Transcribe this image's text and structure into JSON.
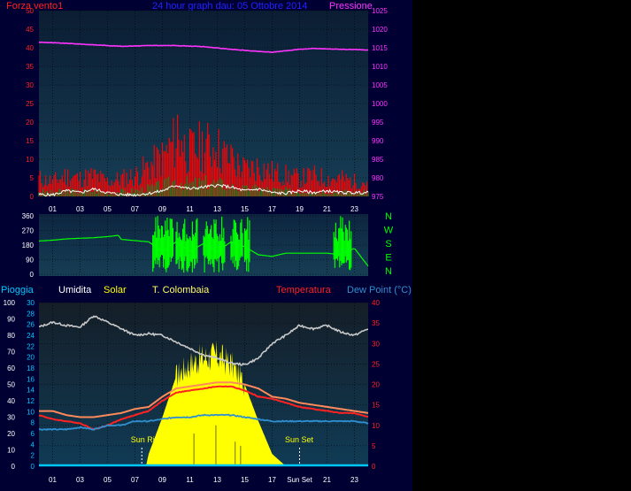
{
  "header": {
    "left_label": "Forza vento1",
    "title": "24 hour graph dau: 05 Ottobre 2014",
    "right_label": "Pressione"
  },
  "colors": {
    "background": "#000033",
    "panel_top": "#0b1d33",
    "panel_bottom": "#143a52",
    "wind": "#ff0000",
    "wind_avg": "#1f7f1f",
    "wind_white": "#ffffff",
    "pressure": "#ff33ff",
    "direction": "#00ff00",
    "humidity": "#c8c8c8",
    "solar": "#ffff00",
    "temp_colombaia": "#ff8a5a",
    "temperature": "#ff2222",
    "dewpoint": "#2f8fd0",
    "rain": "#00c8ff",
    "axis_text": "#ffffff",
    "title": "#2222ff"
  },
  "chart_data": [
    {
      "type": "line",
      "name": "wind-pressure",
      "x_ticks": [
        "01",
        "03",
        "05",
        "07",
        "09",
        "11",
        "13",
        "15",
        "17",
        "19",
        "21",
        "23"
      ],
      "y_left_ticks": [
        0,
        5,
        10,
        15,
        20,
        25,
        30,
        35,
        40,
        45,
        50
      ],
      "ylim_left": [
        0,
        50
      ],
      "y_right_ticks": [
        975,
        980,
        985,
        990,
        995,
        1000,
        1005,
        1010,
        1015,
        1020,
        1025
      ],
      "ylim_right": [
        975,
        1025
      ],
      "series": [
        {
          "key": "pressure",
          "axis": "right",
          "x": [
            0,
            2,
            4,
            6,
            8,
            10,
            12,
            14,
            16,
            17,
            18,
            19,
            20,
            22,
            24
          ],
          "values": [
            1016.5,
            1016.2,
            1015.8,
            1015.4,
            1015.6,
            1015.6,
            1015.3,
            1014.6,
            1014.0,
            1013.8,
            1014.2,
            1014.6,
            1014.8,
            1014.6,
            1014.4
          ]
        },
        {
          "key": "wind_white",
          "axis": "left",
          "x": [
            0,
            1,
            2,
            3,
            4,
            5,
            6,
            7,
            8,
            9,
            10,
            11,
            12,
            13,
            14,
            15,
            16,
            17,
            18,
            19,
            20,
            21,
            22,
            23,
            24
          ],
          "values": [
            0.5,
            0.4,
            1.5,
            1,
            2,
            1,
            0.5,
            0.4,
            0.8,
            1.5,
            3,
            2,
            2.5,
            3,
            2.5,
            1.5,
            2,
            1,
            0.8,
            1.5,
            1,
            1.5,
            1,
            1,
            1
          ]
        },
        {
          "key": "wind_gust",
          "axis": "left",
          "x": [
            0,
            1,
            2,
            3,
            4,
            5,
            6,
            7,
            8,
            9,
            10,
            11,
            12,
            13,
            14,
            15,
            16,
            17,
            18,
            19,
            20,
            21,
            22,
            23,
            24
          ],
          "values": [
            6,
            5,
            7,
            6,
            7,
            5,
            6,
            7,
            10,
            13,
            19,
            15,
            17,
            16,
            12,
            9,
            10,
            8,
            7,
            6,
            7,
            6,
            6,
            5,
            5
          ]
        }
      ]
    },
    {
      "type": "line",
      "name": "wind-direction",
      "y_ticks": [
        0,
        90,
        180,
        270,
        360
      ],
      "ylim": [
        0,
        360
      ],
      "compass_labels": [
        "N",
        "W",
        "S",
        "E",
        "N"
      ],
      "series": [
        {
          "key": "direction",
          "x": [
            0,
            1,
            2,
            3,
            4,
            5,
            5.8,
            6,
            8,
            9,
            10,
            11,
            12,
            13,
            14,
            15,
            16,
            17,
            18,
            19,
            20,
            21,
            22,
            23,
            24
          ],
          "values": [
            205,
            210,
            218,
            222,
            225,
            232,
            240,
            215,
            200,
            140,
            200,
            140,
            190,
            140,
            200,
            170,
            120,
            110,
            130,
            130,
            130,
            130,
            120,
            160,
            50
          ]
        }
      ]
    },
    {
      "type": "line",
      "name": "temperature-humidity-solar",
      "legend": [
        "Pioggia",
        "Umidita",
        "Solar",
        "T. Colombaia",
        "Temperatura",
        "Dew Point (°C)"
      ],
      "x_tick_labels": [
        "01",
        "03",
        "05",
        "07",
        "09",
        "11",
        "13",
        "15",
        "17",
        "Sun Set",
        "21",
        "23"
      ],
      "annotations": [
        "Sun Rise",
        "Sun Set"
      ],
      "y_humidity_ticks": [
        0,
        10,
        20,
        30,
        40,
        50,
        60,
        70,
        80,
        90,
        100
      ],
      "y_rain_ticks": [
        0,
        2,
        4,
        6,
        8,
        10,
        12,
        14,
        16,
        18,
        20,
        22,
        24,
        26,
        28,
        30
      ],
      "y_temp_ticks": [
        0,
        5,
        10,
        15,
        20,
        25,
        30,
        35,
        40
      ],
      "ylim_temp": [
        0,
        40
      ],
      "series": [
        {
          "key": "humidity",
          "x": [
            0,
            1,
            2,
            3,
            4,
            5,
            6,
            7,
            8,
            9,
            10,
            11,
            12,
            13,
            14,
            15,
            16,
            17,
            18,
            19,
            20,
            21,
            22,
            23,
            24
          ],
          "values": [
            85,
            88,
            86,
            85,
            92,
            88,
            84,
            80,
            81,
            80,
            76,
            72,
            68,
            66,
            63,
            62,
            66,
            75,
            80,
            86,
            84,
            86,
            82,
            80,
            84
          ]
        },
        {
          "key": "temp_colombaia",
          "x": [
            0,
            1,
            2,
            3,
            4,
            5,
            6,
            7,
            8,
            9,
            10,
            11,
            12,
            13,
            14,
            15,
            16,
            17,
            18,
            19,
            20,
            21,
            22,
            23,
            24
          ],
          "values": [
            13.5,
            13.5,
            12.5,
            12,
            12,
            12.5,
            13,
            14,
            14.5,
            17,
            19,
            19.5,
            20,
            20.5,
            20.5,
            20,
            19,
            17,
            16.5,
            15.5,
            15,
            14.5,
            14,
            13.5,
            13
          ]
        },
        {
          "key": "temperature",
          "x": [
            0,
            1,
            2,
            3,
            4,
            5,
            6,
            7,
            8,
            9,
            10,
            11,
            12,
            13,
            14,
            15,
            16,
            17,
            18,
            19,
            20,
            21,
            22,
            23,
            24
          ],
          "values": [
            12.5,
            11.5,
            11,
            10.5,
            9,
            10,
            11.5,
            12.5,
            13.5,
            16,
            18,
            18.5,
            19,
            19.5,
            19.5,
            18.5,
            17,
            16.5,
            15.5,
            14.5,
            14,
            13.5,
            13,
            13,
            12
          ]
        },
        {
          "key": "dewpoint",
          "x": [
            0,
            1,
            2,
            3,
            4,
            5,
            6,
            7,
            8,
            9,
            10,
            11,
            12,
            13,
            14,
            15,
            16,
            17,
            18,
            19,
            20,
            21,
            22,
            23,
            24
          ],
          "values": [
            9,
            9,
            9,
            9.5,
            9,
            10,
            10,
            11,
            11,
            11.5,
            12,
            12,
            12.5,
            12.5,
            12.5,
            12,
            11.5,
            11,
            11,
            11,
            11,
            11,
            11,
            11,
            10.5
          ]
        },
        {
          "key": "solar",
          "x": [
            7.8,
            8,
            9,
            10,
            11,
            12,
            13,
            14,
            15,
            16,
            17,
            18
          ],
          "values": [
            0,
            3,
            12,
            22,
            25,
            26.5,
            27,
            25,
            20,
            11,
            3,
            0
          ]
        }
      ]
    }
  ]
}
